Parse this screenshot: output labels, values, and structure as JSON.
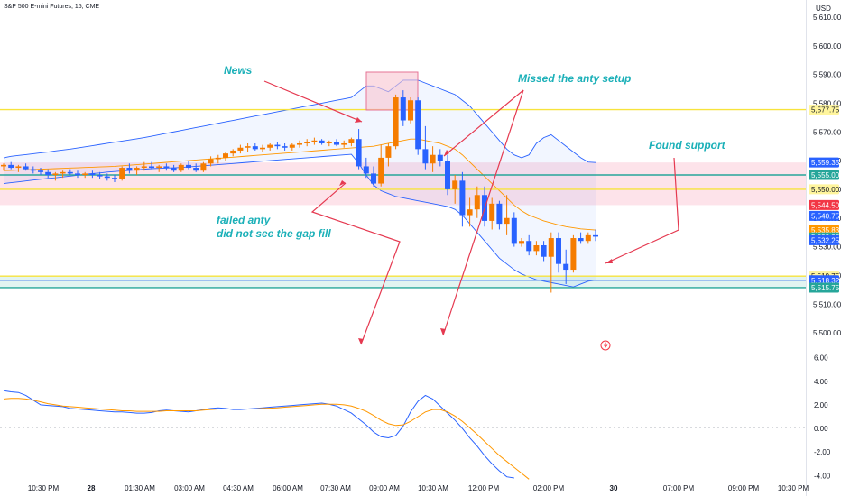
{
  "header": {
    "symbol_title": "S&P 500 E-mini Futures, 15, CME",
    "currency": "USD"
  },
  "chart_data": [
    {
      "type": "candlestick",
      "title": "S&P 500 E-mini Futures, 15, CME",
      "ylabel": "USD",
      "ylim": [
        5495,
        5615
      ],
      "y_ticks": [
        "5,500.00",
        "5,510.00",
        "5,520.00",
        "5,530.00",
        "5,540.00",
        "5,550.00",
        "5,560.00",
        "5,570.00",
        "5,580.00",
        "5,590.00",
        "5,600.00",
        "5,610.00"
      ],
      "x_ticks": [
        "10:30 PM",
        "28",
        "01:30 AM",
        "03:00 AM",
        "04:30 AM",
        "06:00 AM",
        "07:30 AM",
        "09:00 AM",
        "10:30 AM",
        "12:00 PM",
        "02:00 PM",
        "30",
        "07:00 PM",
        "09:00 PM",
        "10:30 PM"
      ],
      "price_labels": [
        {
          "text": "5,577.75",
          "color": "#fff59d",
          "fg": "#131722",
          "value": 5577.75
        },
        {
          "text": "5,559.35",
          "color": "#2962ff",
          "fg": "#ffffff",
          "value": 5559.35
        },
        {
          "text": "5,555.00",
          "color": "#26a69a",
          "fg": "#ffffff",
          "value": 5555.0
        },
        {
          "text": "5,550.00",
          "color": "#fff59d",
          "fg": "#131722",
          "value": 5550.0
        },
        {
          "text": "5,544.50",
          "color": "#f23645",
          "fg": "#ffffff",
          "value": 5544.5
        },
        {
          "text": "5,540.75",
          "color": "#2962ff",
          "fg": "#ffffff",
          "value": 5540.75
        },
        {
          "text": "5,535.83",
          "color": "#ff9800",
          "fg": "#ffffff",
          "value": 5535.83
        },
        {
          "text": "5,533.25",
          "color": "#26a69a",
          "fg": "#ffffff",
          "value": 5533.25
        },
        {
          "text": "5,532.25",
          "color": "#2962ff",
          "fg": "#ffffff",
          "value": 5532.25
        },
        {
          "text": "5,519.75",
          "color": "#fff59d",
          "fg": "#131722",
          "value": 5519.75
        },
        {
          "text": "5,518.32",
          "color": "#2962ff",
          "fg": "#ffffff",
          "value": 5518.32
        },
        {
          "text": "5,515.75",
          "color": "#26a69a",
          "fg": "#ffffff",
          "value": 5515.75
        }
      ],
      "levels": [
        {
          "value": 5577.75,
          "color": "#f7e33c"
        },
        {
          "value": 5555.0,
          "color": "#26a69a"
        },
        {
          "value": 5550.0,
          "color": "#f7e33c"
        },
        {
          "value": 5519.75,
          "color": "#f7e33c"
        },
        {
          "value": 5518.32,
          "color": "#5b8def"
        },
        {
          "value": 5515.75,
          "color": "#26a69a"
        }
      ],
      "zones": [
        {
          "from": 5544.5,
          "to": 5559.35,
          "color": "#fde3ea"
        },
        {
          "from": 5515.75,
          "to": 5519.75,
          "color": "#e2f4f1"
        }
      ],
      "candles": [
        [
          5558,
          5559,
          5556.5,
          5558.5
        ],
        [
          5558.5,
          5559.5,
          5557,
          5557.5
        ],
        [
          5557.5,
          5558.5,
          5556,
          5558
        ],
        [
          5558,
          5559,
          5556.5,
          5557
        ],
        [
          5557,
          5558,
          5555.5,
          5556.5
        ],
        [
          5556.5,
          5557.5,
          5555,
          5556
        ],
        [
          5556,
          5557,
          5554,
          5555
        ],
        [
          5555,
          5556,
          5553,
          5555.5
        ],
        [
          5555.5,
          5556.5,
          5554,
          5556
        ],
        [
          5556,
          5557,
          5555,
          5555.5
        ],
        [
          5555.5,
          5556.5,
          5554,
          5555
        ],
        [
          5555,
          5556,
          5554,
          5555.5
        ],
        [
          5555.5,
          5556.5,
          5554,
          5555
        ],
        [
          5555,
          5556,
          5553.5,
          5554.5
        ],
        [
          5554.5,
          5555.5,
          5553,
          5554
        ],
        [
          5554,
          5555,
          5552.5,
          5553.5
        ],
        [
          5553.5,
          5558,
          5553,
          5557.5
        ],
        [
          5557.5,
          5559,
          5555.5,
          5556.5
        ],
        [
          5556.5,
          5558,
          5555,
          5557.5
        ],
        [
          5557.5,
          5559.5,
          5556.5,
          5558
        ],
        [
          5558,
          5559.5,
          5557,
          5557.5
        ],
        [
          5557.5,
          5558.5,
          5556,
          5558
        ],
        [
          5558,
          5559,
          5556.5,
          5557.5
        ],
        [
          5557.5,
          5558.5,
          5556,
          5556.5
        ],
        [
          5556.5,
          5559,
          5556,
          5558.5
        ],
        [
          5558.5,
          5560,
          5557,
          5557.5
        ],
        [
          5557.5,
          5559,
          5556,
          5556.5
        ],
        [
          5556.5,
          5559.5,
          5556,
          5559
        ],
        [
          5559,
          5561.5,
          5558,
          5560.5
        ],
        [
          5560.5,
          5562,
          5559,
          5561
        ],
        [
          5561,
          5563,
          5560,
          5562.5
        ],
        [
          5562.5,
          5564,
          5561.5,
          5563.5
        ],
        [
          5563.5,
          5565.5,
          5562.5,
          5564.5
        ],
        [
          5564.5,
          5566,
          5563,
          5565
        ],
        [
          5565,
          5566,
          5563.5,
          5564
        ],
        [
          5564,
          5565.5,
          5563,
          5564.5
        ],
        [
          5564.5,
          5566,
          5563.5,
          5565.5
        ],
        [
          5565.5,
          5566.5,
          5564,
          5565
        ],
        [
          5565,
          5566,
          5563.5,
          5564.5
        ],
        [
          5564.5,
          5566,
          5563.5,
          5565.5
        ],
        [
          5565.5,
          5567,
          5564.5,
          5566
        ],
        [
          5566,
          5567.5,
          5565,
          5566.5
        ],
        [
          5566.5,
          5568,
          5565.5,
          5567
        ],
        [
          5567,
          5567.5,
          5565.5,
          5566
        ],
        [
          5566,
          5567,
          5565,
          5566.5
        ],
        [
          5566.5,
          5567.5,
          5565,
          5565.5
        ],
        [
          5565.5,
          5567,
          5564.5,
          5566
        ],
        [
          5566,
          5568,
          5565,
          5567.5
        ],
        [
          5567.5,
          5571,
          5557,
          5558
        ],
        [
          5558,
          5561,
          5554,
          5555.5
        ],
        [
          5555.5,
          5558,
          5551,
          5552
        ],
        [
          5552,
          5565.5,
          5551,
          5561
        ],
        [
          5561,
          5566,
          5558,
          5565
        ],
        [
          5565,
          5583,
          5564,
          5582
        ],
        [
          5582,
          5584.5,
          5572,
          5574
        ],
        [
          5574,
          5582,
          5573,
          5581
        ],
        [
          5581,
          5582,
          5562,
          5564
        ],
        [
          5564,
          5572,
          5557,
          5559
        ],
        [
          5559,
          5565,
          5556,
          5562
        ],
        [
          5562,
          5564,
          5558,
          5560
        ],
        [
          5560,
          5562,
          5548,
          5550
        ],
        [
          5550,
          5555,
          5545,
          5553
        ],
        [
          5553,
          5556,
          5537,
          5541
        ],
        [
          5541,
          5547,
          5537,
          5543
        ],
        [
          5543,
          5551,
          5540,
          5548
        ],
        [
          5548,
          5551,
          5537,
          5539
        ],
        [
          5539,
          5547,
          5536,
          5545
        ],
        [
          5545,
          5546,
          5536,
          5538
        ],
        [
          5538,
          5548,
          5534,
          5540
        ],
        [
          5540,
          5542,
          5530,
          5531
        ],
        [
          5531,
          5533,
          5530,
          5532
        ],
        [
          5532,
          5534,
          5527,
          5528.5
        ],
        [
          5528.5,
          5532,
          5527,
          5530.5
        ],
        [
          5530.5,
          5532,
          5525,
          5526.5
        ],
        [
          5526.5,
          5535,
          5514,
          5533
        ],
        [
          5533,
          5535,
          5521,
          5524
        ],
        [
          5524,
          5529,
          5517,
          5522
        ],
        [
          5522,
          5534,
          5521,
          5533
        ],
        [
          5533,
          5535,
          5531,
          5532
        ],
        [
          5532,
          5535,
          5531,
          5534
        ],
        [
          5534,
          5536,
          5532,
          5533.5
        ]
      ],
      "indicators": {
        "bollinger_upper": [
          5561,
          5561.5,
          5561.8,
          5562.1,
          5562.4,
          5562.7,
          5563,
          5563.4,
          5563.7,
          5564,
          5564.4,
          5564.8,
          5565.2,
          5565.6,
          5566,
          5566.4,
          5566.8,
          5567.2,
          5567.6,
          5568,
          5568.5,
          5569,
          5569.5,
          5570,
          5570.5,
          5571,
          5571.5,
          5572,
          5572.5,
          5573,
          5573.5,
          5574,
          5574.5,
          5575,
          5575.5,
          5576,
          5576.5,
          5577,
          5577.5,
          5578,
          5578.5,
          5579,
          5579.5,
          5580,
          5580.5,
          5581,
          5581.5,
          5582,
          5584,
          5586,
          5586,
          5585,
          5584,
          5586,
          5588,
          5588,
          5588,
          5587,
          5586,
          5585,
          5584,
          5583,
          5581,
          5579,
          5576,
          5573,
          5570,
          5567,
          5564,
          5562,
          5561,
          5562,
          5566,
          5568,
          5569,
          5567,
          5565,
          5563,
          5561,
          5559.5,
          5559.35
        ],
        "bollinger_lower": [
          5552,
          5552.3,
          5552.6,
          5552.9,
          5553.2,
          5553.5,
          5553.8,
          5554,
          5554.3,
          5554.6,
          5554.9,
          5555.2,
          5555.5,
          5555.7,
          5556,
          5556.2,
          5556.4,
          5556.6,
          5556.8,
          5557,
          5557.2,
          5557.3,
          5557.4,
          5557.5,
          5557.6,
          5557.8,
          5558,
          5558.2,
          5558.4,
          5558.6,
          5558.8,
          5559,
          5559.2,
          5559.4,
          5559.6,
          5559.8,
          5560,
          5560.2,
          5560.4,
          5560.6,
          5560.8,
          5561,
          5561.2,
          5561.4,
          5561.6,
          5561.8,
          5562,
          5562.2,
          5559,
          5555,
          5551.5,
          5549.5,
          5548.5,
          5547.5,
          5547,
          5546.5,
          5546,
          5545.5,
          5545,
          5544.5,
          5544,
          5543,
          5541,
          5538,
          5535,
          5532,
          5529,
          5526,
          5524,
          5522,
          5520.5,
          5519.5,
          5518.5,
          5518,
          5517.5,
          5517,
          5516.5,
          5516,
          5517,
          5518,
          5518.32
        ],
        "basis": [
          5556.5,
          5556.6,
          5556.7,
          5556.8,
          5556.9,
          5557,
          5557.1,
          5557.2,
          5557.3,
          5557.4,
          5557.5,
          5557.6,
          5557.7,
          5557.8,
          5557.9,
          5558,
          5558.2,
          5558.4,
          5558.6,
          5558.8,
          5559,
          5559.2,
          5559.4,
          5559.6,
          5559.8,
          5560,
          5560.2,
          5560.4,
          5560.6,
          5560.8,
          5561,
          5561.2,
          5561.4,
          5561.6,
          5561.8,
          5562,
          5562.2,
          5562.4,
          5562.6,
          5562.8,
          5563,
          5563.2,
          5563.4,
          5563.6,
          5563.8,
          5564,
          5564.2,
          5564.4,
          5564.6,
          5564.8,
          5565,
          5565.5,
          5566,
          5566.5,
          5567,
          5567.5,
          5567.5,
          5567,
          5566.5,
          5566,
          5565,
          5564,
          5562,
          5559.5,
          5557,
          5554.5,
          5552,
          5549.5,
          5547,
          5544.5,
          5542.5,
          5541,
          5540,
          5539,
          5538.3,
          5537.6,
          5537,
          5536.6,
          5536.2,
          5536,
          5535.83
        ]
      }
    },
    {
      "type": "line",
      "ylim": [
        -4.2,
        6.2
      ],
      "y_ticks": [
        "6.00",
        "4.00",
        "2.00",
        "0.00",
        "-2.00",
        "-4.00"
      ],
      "series": [
        {
          "color": "#2962ff",
          "values": [
            3.2,
            3.1,
            3.05,
            2.8,
            2.4,
            2.0,
            1.95,
            1.9,
            1.85,
            1.7,
            1.65,
            1.6,
            1.55,
            1.5,
            1.45,
            1.4,
            1.4,
            1.35,
            1.3,
            1.3,
            1.35,
            1.5,
            1.55,
            1.5,
            1.45,
            1.4,
            1.5,
            1.6,
            1.7,
            1.75,
            1.7,
            1.6,
            1.6,
            1.65,
            1.7,
            1.75,
            1.8,
            1.85,
            1.9,
            1.95,
            2.0,
            2.05,
            2.1,
            2.15,
            2.05,
            1.9,
            1.6,
            1.3,
            0.8,
            0.3,
            -0.3,
            -0.7,
            -0.8,
            -0.6,
            0.2,
            1.4,
            2.3,
            2.8,
            2.5,
            1.9,
            1.3,
            0.7,
            0.0,
            -0.8,
            -1.5,
            -2.3,
            -3.0,
            -3.6,
            -4.1,
            -4.2
          ]
        },
        {
          "color": "#ff9800",
          "values": [
            2.5,
            2.55,
            2.55,
            2.5,
            2.4,
            2.25,
            2.1,
            2.0,
            1.9,
            1.85,
            1.8,
            1.75,
            1.7,
            1.65,
            1.6,
            1.55,
            1.5,
            1.5,
            1.45,
            1.45,
            1.45,
            1.45,
            1.5,
            1.5,
            1.5,
            1.5,
            1.5,
            1.55,
            1.6,
            1.65,
            1.65,
            1.65,
            1.65,
            1.65,
            1.65,
            1.7,
            1.72,
            1.75,
            1.8,
            1.85,
            1.9,
            1.95,
            2.0,
            2.05,
            2.05,
            2.05,
            2.0,
            1.9,
            1.7,
            1.45,
            1.1,
            0.7,
            0.4,
            0.25,
            0.3,
            0.6,
            1.0,
            1.4,
            1.6,
            1.6,
            1.4,
            1.05,
            0.6,
            0.05,
            -0.5,
            -1.1,
            -1.7,
            -2.3,
            -2.8,
            -3.3,
            -3.8,
            -4.3
          ]
        }
      ]
    }
  ],
  "annotations": [
    {
      "text": "News"
    },
    {
      "text": "Missed the anty setup"
    },
    {
      "text": "Found support"
    },
    {
      "text": "failed anty"
    },
    {
      "text": "did not see the gap fill"
    }
  ]
}
